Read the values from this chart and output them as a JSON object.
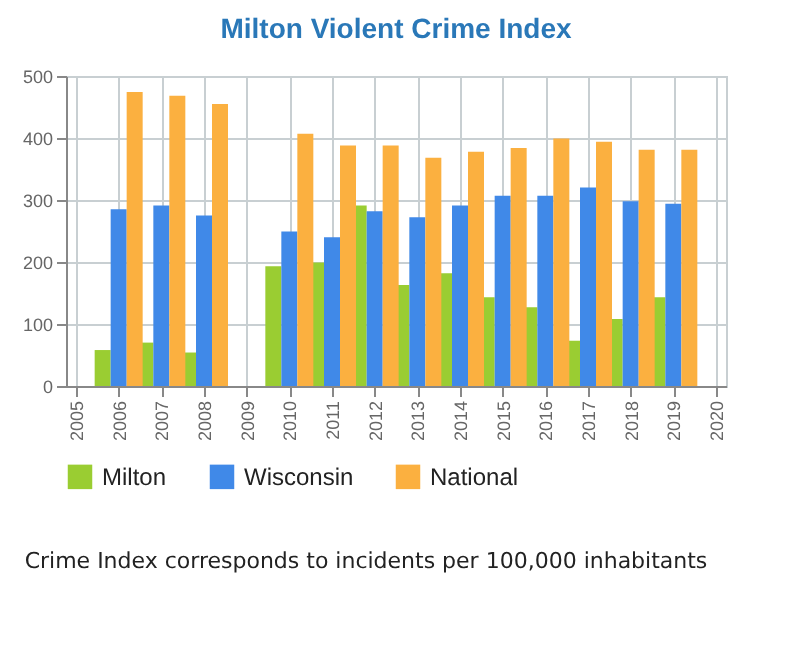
{
  "chart_data": {
    "type": "bar",
    "title": "Milton Violent Crime Index",
    "annotations": [
      "Crime Index corresponds to incidents per 100,000 inhabitants"
    ],
    "x": [
      2006,
      2007,
      2008,
      2010,
      2011,
      2012,
      2013,
      2014,
      2015,
      2016,
      2017,
      2018,
      2019
    ],
    "series": [
      {
        "name": "Milton",
        "color": "#9acd32",
        "values": [
          58,
          70,
          54,
          193,
          199,
          291,
          163,
          182,
          143,
          127,
          73,
          108,
          143
        ]
      },
      {
        "name": "Wisconsin",
        "color": "#4089e8",
        "values": [
          285,
          291,
          275,
          249,
          240,
          282,
          272,
          291,
          307,
          307,
          320,
          298,
          294
        ]
      },
      {
        "name": "National",
        "color": "#fbb040",
        "values": [
          474,
          468,
          455,
          407,
          388,
          388,
          368,
          378,
          384,
          399,
          394,
          381,
          381
        ]
      }
    ],
    "xlim": [
      2005,
      2020
    ],
    "xticks": [
      2005,
      2006,
      2007,
      2008,
      2009,
      2010,
      2011,
      2012,
      2013,
      2014,
      2015,
      2016,
      2017,
      2018,
      2019,
      2020
    ],
    "ylim": [
      0,
      500
    ],
    "yticks": [
      0,
      100,
      200,
      300,
      400,
      500
    ],
    "grid": true,
    "legend": "bottom"
  }
}
